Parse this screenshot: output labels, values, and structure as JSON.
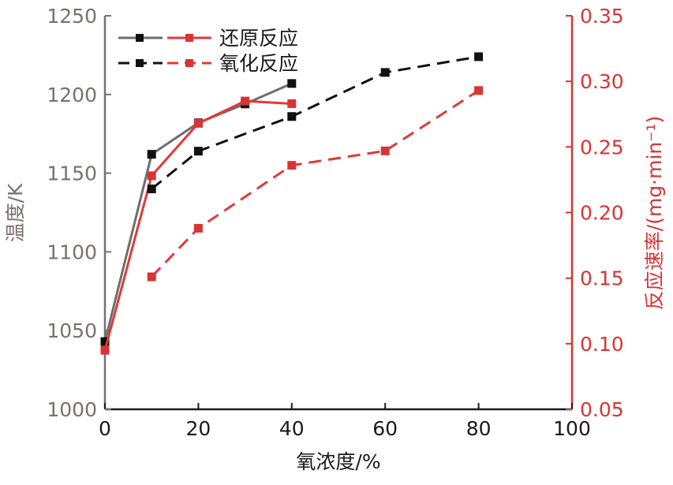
{
  "chart_data": {
    "type": "line",
    "title": "",
    "xlabel": "氧浓度/%",
    "ylabel_left": "温度/K",
    "ylabel_right": "反应速率/(mg·min⁻¹)",
    "xlim": [
      0,
      100
    ],
    "ylim_left": [
      1000,
      1250
    ],
    "ylim_right": [
      0.05,
      0.35
    ],
    "x_ticks": [
      "0",
      "20",
      "40",
      "60",
      "80",
      "100"
    ],
    "y_left_ticks": [
      "1000",
      "1050",
      "1100",
      "1150",
      "1200",
      "1250"
    ],
    "y_right_ticks": [
      "0.05",
      "0.10",
      "0.15",
      "0.20",
      "0.25",
      "0.30",
      "0.35"
    ],
    "grid": false,
    "legend_position": "top-left",
    "legend": [
      {
        "label": "还原反应",
        "style": "solid"
      },
      {
        "label": "氧化反应",
        "style": "dashed"
      }
    ],
    "series": [
      {
        "name": "还原反应-温度",
        "axis": "left",
        "style": "solid",
        "color": "#6e6e6e",
        "marker_color": "#111111",
        "x": [
          0,
          10,
          20,
          30,
          40
        ],
        "values": [
          1043,
          1162,
          1182,
          1194,
          1207
        ]
      },
      {
        "name": "还原反应-反应速率",
        "axis": "right",
        "style": "solid",
        "color": "#e03a3a",
        "marker_color": "#d93434",
        "x": [
          0,
          10,
          20,
          30,
          40
        ],
        "values": [
          0.095,
          0.228,
          0.268,
          0.285,
          0.283
        ]
      },
      {
        "name": "氧化反应-温度",
        "axis": "left",
        "style": "dashed",
        "color": "#111111",
        "marker_color": "#111111",
        "x": [
          10,
          20,
          40,
          60,
          80
        ],
        "values": [
          1140,
          1164,
          1186,
          1214,
          1224
        ]
      },
      {
        "name": "氧化反应-反应速率",
        "axis": "right",
        "style": "dashed",
        "color": "#e03a3a",
        "marker_color": "#d93434",
        "x": [
          10,
          20,
          40,
          60,
          80
        ],
        "values": [
          0.151,
          0.188,
          0.236,
          0.247,
          0.293
        ]
      }
    ],
    "colors": {
      "left_axis": "#7a6f6f",
      "right_axis": "#d93434",
      "axis_title_left": "#7a6f6f",
      "axis_title_right": "#d93434"
    }
  }
}
